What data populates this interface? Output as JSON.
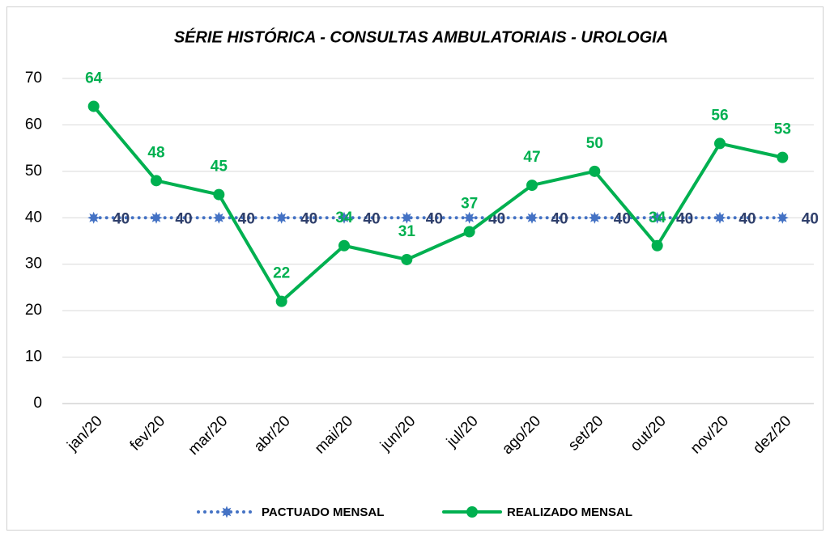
{
  "chart_data": {
    "type": "line",
    "title": "SÉRIE HISTÓRICA - CONSULTAS AMBULATORIAIS - UROLOGIA",
    "categories": [
      "jan/20",
      "fev/20",
      "mar/20",
      "abr/20",
      "mai/20",
      "jun/20",
      "jul/20",
      "ago/20",
      "set/20",
      "out/20",
      "nov/20",
      "dez/20"
    ],
    "series": [
      {
        "name": "PACTUADO MENSAL",
        "color": "#4472c4",
        "label_color": "#2f3f6b",
        "dash": "dotted",
        "values": [
          40,
          40,
          40,
          40,
          40,
          40,
          40,
          40,
          40,
          40,
          40,
          40
        ]
      },
      {
        "name": "REALIZADO MENSAL",
        "color": "#00b050",
        "label_color": "#00b050",
        "dash": "solid",
        "values": [
          64,
          48,
          45,
          22,
          34,
          31,
          37,
          47,
          50,
          34,
          56,
          53
        ]
      }
    ],
    "ylim": [
      0,
      70
    ],
    "yticks": [
      0,
      10,
      20,
      30,
      40,
      50,
      60,
      70
    ],
    "grid": true,
    "legend": "bottom"
  }
}
